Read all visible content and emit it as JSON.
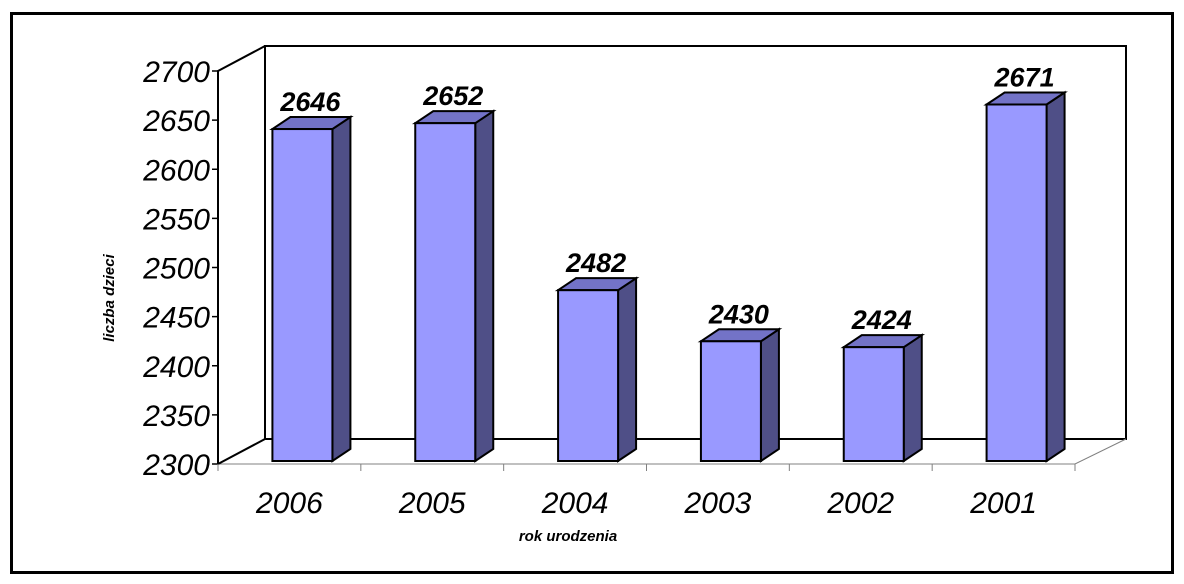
{
  "chart_data": {
    "type": "bar",
    "style": "3d-column",
    "categories": [
      "2006",
      "2005",
      "2004",
      "2003",
      "2002",
      "2001"
    ],
    "values": [
      2646,
      2652,
      2482,
      2430,
      2424,
      2671
    ],
    "data_labels": [
      "2646",
      "2652",
      "2482",
      "2430",
      "2424",
      "2671"
    ],
    "xlabel": "rok urodzenia",
    "ylabel": "liczba dzieci",
    "ylim": [
      2300,
      2700
    ],
    "yticks": [
      "2300",
      "2350",
      "2400",
      "2450",
      "2500",
      "2550",
      "2600",
      "2650",
      "2700"
    ],
    "grid": false,
    "legend": "none",
    "colors": {
      "bar_front": "#9999ff",
      "bar_side": "#4f4f87",
      "bar_top": "#7373c7",
      "axis": "#000000"
    }
  }
}
